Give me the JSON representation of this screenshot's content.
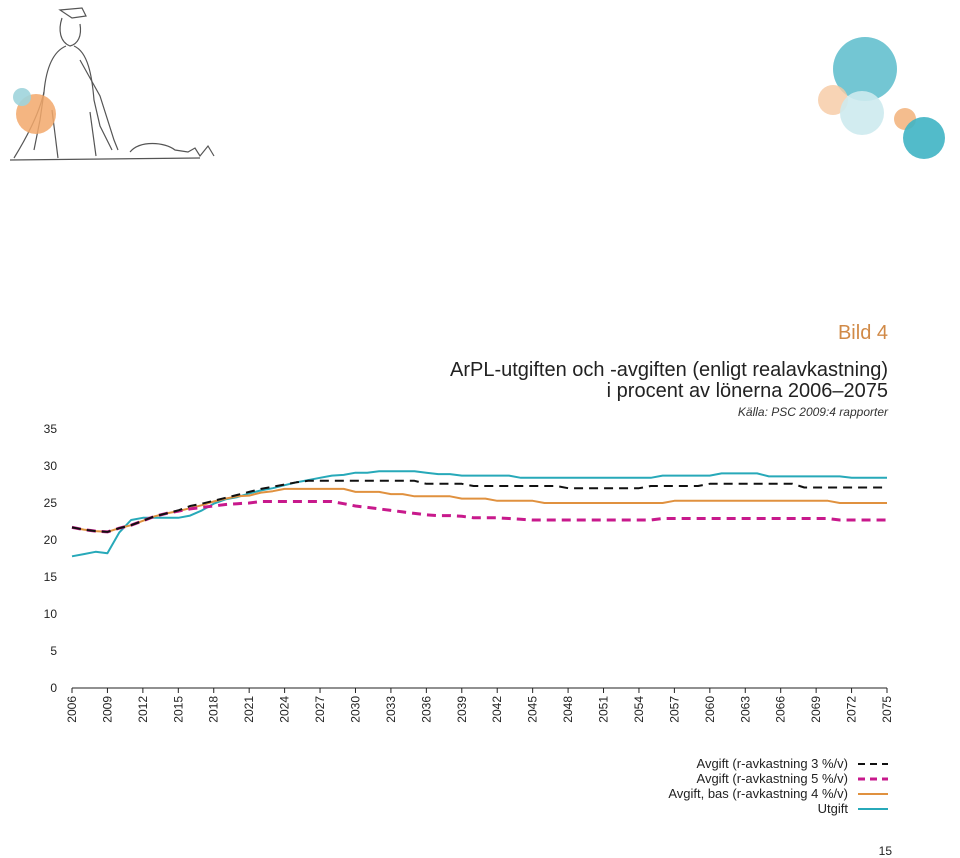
{
  "header": {
    "figure_label": "Bild 4",
    "title_line1": "ArPL-utgiften och -avgiften (enligt realavkastning)",
    "title_line2": "i procent av lönerna 2006–2075",
    "source": "Källa: PSC 2009:4 rapporter"
  },
  "page_number": "15",
  "colors": {
    "black_dashed": "#111111",
    "magenta_dashed": "#c8198c",
    "orange": "#e0913f",
    "teal": "#27a9b9",
    "accent_label": "#d18a47"
  },
  "chart_data": {
    "type": "line",
    "x": [
      2006,
      2007,
      2008,
      2009,
      2010,
      2011,
      2012,
      2013,
      2014,
      2015,
      2016,
      2017,
      2018,
      2019,
      2020,
      2021,
      2022,
      2023,
      2024,
      2025,
      2026,
      2027,
      2028,
      2029,
      2030,
      2031,
      2032,
      2033,
      2034,
      2035,
      2036,
      2037,
      2038,
      2039,
      2040,
      2041,
      2042,
      2043,
      2044,
      2045,
      2046,
      2047,
      2048,
      2049,
      2050,
      2051,
      2052,
      2053,
      2054,
      2055,
      2056,
      2057,
      2058,
      2059,
      2060,
      2061,
      2062,
      2063,
      2064,
      2065,
      2066,
      2067,
      2068,
      2069,
      2070,
      2071,
      2072,
      2073,
      2074,
      2075
    ],
    "x_tick_labels": [
      "2006",
      "2009",
      "2012",
      "2015",
      "2018",
      "2021",
      "2024",
      "2027",
      "2030",
      "2033",
      "2036",
      "2039",
      "2042",
      "2045",
      "2048",
      "2051",
      "2054",
      "2057",
      "2060",
      "2063",
      "2066",
      "2069",
      "2072",
      "2075"
    ],
    "ylim": [
      0,
      35
    ],
    "y_ticks": [
      0,
      5,
      10,
      15,
      20,
      25,
      30,
      35
    ],
    "grid": false,
    "legend_position": "bottom-right",
    "series": [
      {
        "name": "Avgift (r-avkastning 3 %/v)",
        "style": "dashed",
        "color": "#111111",
        "values": [
          21.7,
          21.4,
          21.2,
          21.1,
          21.6,
          22.0,
          22.6,
          23.2,
          23.6,
          24.0,
          24.6,
          24.9,
          25.3,
          25.7,
          26.1,
          26.5,
          26.9,
          27.2,
          27.5,
          27.8,
          28.0,
          28.0,
          28.0,
          28.0,
          28.0,
          28.0,
          28.0,
          28.0,
          28.0,
          28.0,
          27.6,
          27.6,
          27.6,
          27.6,
          27.3,
          27.3,
          27.3,
          27.3,
          27.3,
          27.3,
          27.3,
          27.3,
          27.0,
          27.0,
          27.0,
          27.0,
          27.0,
          27.0,
          27.0,
          27.3,
          27.3,
          27.3,
          27.3,
          27.3,
          27.6,
          27.6,
          27.6,
          27.6,
          27.6,
          27.6,
          27.6,
          27.6,
          27.1,
          27.1,
          27.1,
          27.1,
          27.1,
          27.1,
          27.1,
          27.1
        ]
      },
      {
        "name": "Avgift (r-avkastning 5 %/v)",
        "style": "dashed",
        "color": "#c8198c",
        "values": [
          21.7,
          21.4,
          21.2,
          21.1,
          21.6,
          22.0,
          22.6,
          23.2,
          23.6,
          23.9,
          24.2,
          24.4,
          24.6,
          24.8,
          24.9,
          25.0,
          25.2,
          25.2,
          25.2,
          25.2,
          25.2,
          25.2,
          25.2,
          24.9,
          24.6,
          24.4,
          24.2,
          24.0,
          23.8,
          23.6,
          23.4,
          23.3,
          23.3,
          23.2,
          23.0,
          23.0,
          23.0,
          22.9,
          22.8,
          22.7,
          22.7,
          22.7,
          22.7,
          22.7,
          22.7,
          22.7,
          22.7,
          22.7,
          22.7,
          22.7,
          22.9,
          22.9,
          22.9,
          22.9,
          22.9,
          22.9,
          22.9,
          22.9,
          22.9,
          22.9,
          22.9,
          22.9,
          22.9,
          22.9,
          22.9,
          22.7,
          22.7,
          22.7,
          22.7,
          22.7
        ]
      },
      {
        "name": "Avgift, bas (r-avkastning 4 %/v)",
        "style": "solid",
        "color": "#e0913f",
        "values": [
          21.7,
          21.4,
          21.2,
          21.1,
          21.6,
          22.0,
          22.6,
          23.2,
          23.6,
          23.9,
          24.3,
          24.7,
          25.2,
          25.6,
          25.9,
          26.0,
          26.4,
          26.6,
          26.9,
          26.9,
          26.9,
          26.9,
          26.9,
          26.9,
          26.5,
          26.5,
          26.5,
          26.2,
          26.2,
          25.9,
          25.9,
          25.9,
          25.9,
          25.6,
          25.6,
          25.6,
          25.3,
          25.3,
          25.3,
          25.3,
          25.0,
          25.0,
          25.0,
          25.0,
          25.0,
          25.0,
          25.0,
          25.0,
          25.0,
          25.0,
          25.0,
          25.3,
          25.3,
          25.3,
          25.3,
          25.3,
          25.3,
          25.3,
          25.3,
          25.3,
          25.3,
          25.3,
          25.3,
          25.3,
          25.3,
          25.0,
          25.0,
          25.0,
          25.0,
          25.0
        ]
      },
      {
        "name": "Utgift",
        "style": "solid",
        "color": "#27a9b9",
        "values": [
          17.8,
          18.1,
          18.4,
          18.2,
          21.0,
          22.7,
          23.0,
          23.0,
          23.0,
          23.0,
          23.3,
          24.0,
          24.9,
          25.5,
          25.8,
          26.3,
          26.7,
          27.0,
          27.4,
          27.8,
          28.1,
          28.4,
          28.7,
          28.8,
          29.1,
          29.1,
          29.3,
          29.3,
          29.3,
          29.3,
          29.1,
          28.9,
          28.9,
          28.7,
          28.7,
          28.7,
          28.7,
          28.7,
          28.4,
          28.4,
          28.4,
          28.4,
          28.4,
          28.4,
          28.4,
          28.4,
          28.4,
          28.4,
          28.4,
          28.4,
          28.7,
          28.7,
          28.7,
          28.7,
          28.7,
          29.0,
          29.0,
          29.0,
          29.0,
          28.6,
          28.6,
          28.6,
          28.6,
          28.6,
          28.6,
          28.6,
          28.4,
          28.4,
          28.4,
          28.4
        ]
      }
    ]
  }
}
